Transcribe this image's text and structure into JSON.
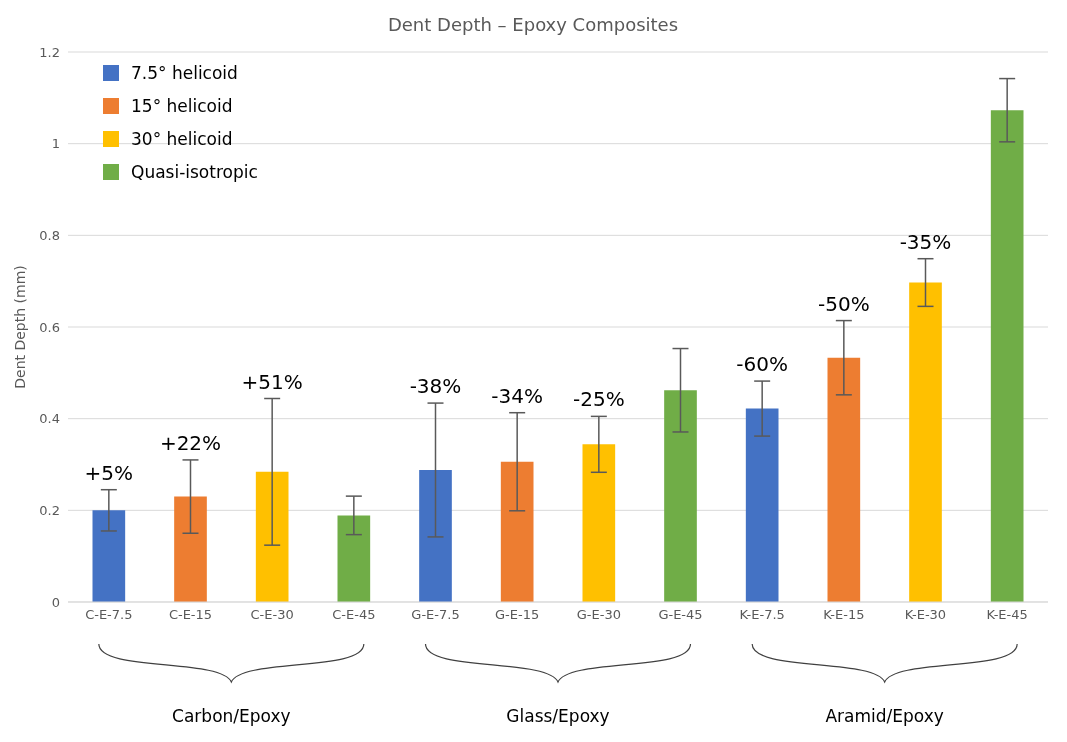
{
  "chart_data": {
    "type": "bar",
    "title": "Dent Depth – Epoxy Composites",
    "ylabel": "Dent Depth (mm)",
    "categories": [
      "C-E-7.5",
      "C-E-15",
      "C-E-30",
      "C-E-45",
      "G-E-7.5",
      "G-E-15",
      "G-E-30",
      "G-E-45",
      "K-E-7.5",
      "K-E-15",
      "K-E-30",
      "K-E-45"
    ],
    "series": [
      {
        "name": "7.5° helicoid",
        "color": "#4472c4",
        "values": [
          0.2,
          null,
          null,
          null,
          0.288,
          null,
          null,
          null,
          0.422,
          null,
          null,
          null
        ],
        "errors": [
          0.045,
          null,
          null,
          null,
          0.146,
          null,
          null,
          null,
          0.06,
          null,
          null,
          null
        ]
      },
      {
        "name": "15° helicoid",
        "color": "#ed7d31",
        "values": [
          null,
          0.23,
          null,
          null,
          null,
          0.306,
          null,
          null,
          null,
          0.533,
          null,
          null
        ],
        "errors": [
          null,
          0.08,
          null,
          null,
          null,
          0.107,
          null,
          null,
          null,
          0.081,
          null,
          null
        ]
      },
      {
        "name": "30° helicoid",
        "color": "#ffc000",
        "values": [
          null,
          null,
          0.284,
          null,
          null,
          null,
          0.344,
          null,
          null,
          null,
          0.697,
          null
        ],
        "errors": [
          null,
          null,
          0.16,
          null,
          null,
          null,
          0.061,
          null,
          null,
          null,
          0.052,
          null
        ]
      },
      {
        "name": "Quasi-isotropic",
        "color": "#70ad47",
        "values": [
          null,
          null,
          null,
          0.189,
          null,
          null,
          null,
          0.462,
          null,
          null,
          null,
          1.073
        ],
        "errors": [
          null,
          null,
          null,
          0.042,
          null,
          null,
          null,
          0.091,
          null,
          null,
          null,
          0.069
        ]
      }
    ],
    "stacked": true,
    "ylim": [
      0,
      1.2
    ],
    "yticks": [
      0,
      0.2,
      0.4,
      0.6,
      0.8,
      1,
      1.2
    ],
    "grid": "y",
    "legend": "top left",
    "annotations": [
      "Carbon/Epoxy",
      "Glass/Epoxy",
      "Aramid/Epoxy",
      {
        "text": "+5%",
        "x": "C-E-7.5",
        "y": 0.245
      },
      {
        "text": "+22%",
        "x": "C-E-15",
        "y": 0.31
      },
      {
        "text": "+51%",
        "x": "C-E-30",
        "y": 0.444
      },
      {
        "text": "-38%",
        "x": "G-E-7.5",
        "y": 0.434
      },
      {
        "text": "-34%",
        "x": "G-E-15",
        "y": 0.413
      },
      {
        "text": "-25%",
        "x": "G-E-30",
        "y": 0.405
      },
      {
        "text": "-60%",
        "x": "K-E-7.5",
        "y": 0.482
      },
      {
        "text": "-50%",
        "x": "K-E-15",
        "y": 0.614
      },
      {
        "text": "-35%",
        "x": "K-E-30",
        "y": 0.749
      }
    ]
  }
}
